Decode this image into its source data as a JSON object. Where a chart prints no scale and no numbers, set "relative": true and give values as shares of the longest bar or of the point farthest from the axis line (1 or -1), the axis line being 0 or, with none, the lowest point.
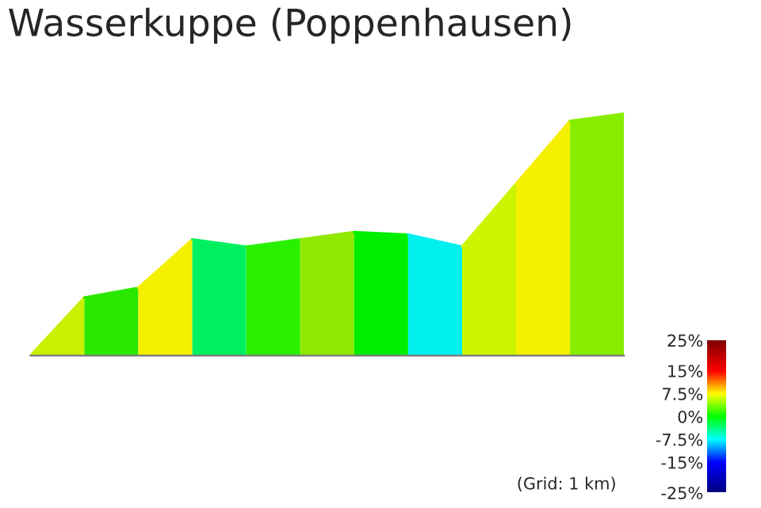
{
  "chart_data": {
    "type": "area",
    "title": "Wasserkuppe (Poppenhausen)",
    "relative": true,
    "categories": [
      null,
      null,
      null,
      null,
      null,
      null,
      null,
      null,
      null,
      null,
      null,
      null
    ],
    "series": [
      {
        "color": "#c8f000",
        "values": [
          0,
          0.24,
          null,
          null,
          null,
          null,
          null,
          null,
          null,
          null,
          null,
          null
        ]
      },
      {
        "color": "#2ae800",
        "values": [
          null,
          0.24,
          0.28,
          null,
          null,
          null,
          null,
          null,
          null,
          null,
          null,
          null
        ]
      },
      {
        "color": "#f5f000",
        "values": [
          null,
          null,
          0.28,
          0.48,
          null,
          null,
          null,
          null,
          null,
          null,
          null,
          null
        ]
      },
      {
        "color": "#00f060",
        "values": [
          null,
          null,
          null,
          0.48,
          0.45,
          null,
          null,
          null,
          null,
          null,
          null,
          null
        ]
      },
      {
        "color": "#28f000",
        "values": [
          null,
          null,
          null,
          null,
          0.45,
          0.48,
          null,
          null,
          null,
          null,
          null,
          null
        ]
      },
      {
        "color": "#90e800",
        "values": [
          null,
          null,
          null,
          null,
          null,
          0.48,
          0.51,
          null,
          null,
          null,
          null,
          null
        ]
      },
      {
        "color": "#00ee00",
        "values": [
          null,
          null,
          null,
          null,
          null,
          null,
          0.51,
          0.5,
          null,
          null,
          null,
          null
        ]
      },
      {
        "color": "#00f0f0",
        "values": [
          null,
          null,
          null,
          null,
          null,
          null,
          null,
          0.5,
          0.45,
          null,
          null,
          null
        ]
      },
      {
        "color": "#ccf500",
        "values": [
          null,
          null,
          null,
          null,
          null,
          null,
          null,
          null,
          0.45,
          0.71,
          null,
          null
        ]
      },
      {
        "color": "#f5ef00",
        "values": [
          null,
          null,
          null,
          null,
          null,
          null,
          null,
          null,
          null,
          0.71,
          0.97,
          null
        ]
      },
      {
        "color": "#88ee00",
        "values": [
          null,
          null,
          null,
          null,
          null,
          null,
          null,
          null,
          null,
          null,
          0.97,
          1.0
        ]
      }
    ],
    "clim": [
      -25,
      25
    ],
    "cticks": [
      {
        "value": 25,
        "label": "25%"
      },
      {
        "value": 15,
        "label": "15%"
      },
      {
        "value": 7.5,
        "label": "7.5%"
      },
      {
        "value": 0,
        "label": "0%"
      },
      {
        "value": -7.5,
        "label": "-7.5%"
      },
      {
        "value": -15,
        "label": "-15%"
      },
      {
        "value": -25,
        "label": "-25%"
      }
    ],
    "annotations": [
      "(Grid: 1 km)"
    ]
  }
}
